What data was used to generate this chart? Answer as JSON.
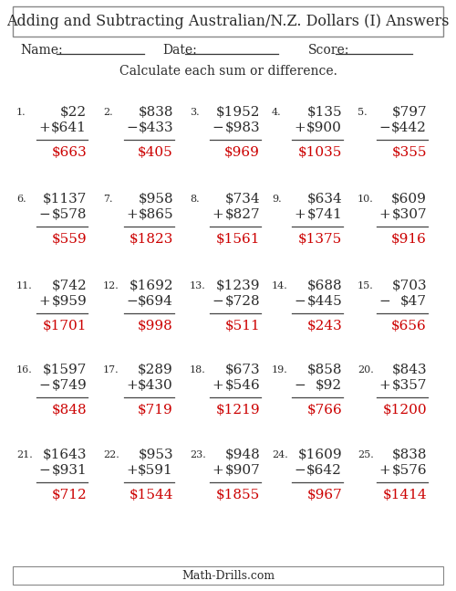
{
  "title": "Adding and Subtracting Australian/N.Z. Dollars (I) Answers",
  "instruction": "Calculate each sum or difference.",
  "footer": "Math-Drills.com",
  "name_label": "Name:",
  "date_label": "Date:",
  "score_label": "Score:",
  "problems": [
    {
      "num": "1.",
      "top": "$22",
      "op": "+",
      "bot": "$641",
      "ans": "$663"
    },
    {
      "num": "2.",
      "top": "$838",
      "op": "−",
      "bot": "$433",
      "ans": "$405"
    },
    {
      "num": "3.",
      "top": "$1952",
      "op": "−",
      "bot": "$983",
      "ans": "$969"
    },
    {
      "num": "4.",
      "top": "$135",
      "op": "+",
      "bot": "$900",
      "ans": "$1035"
    },
    {
      "num": "5.",
      "top": "$797",
      "op": "−",
      "bot": "$442",
      "ans": "$355"
    },
    {
      "num": "6.",
      "top": "$1137",
      "op": "−",
      "bot": "$578",
      "ans": "$559"
    },
    {
      "num": "7.",
      "top": "$958",
      "op": "+",
      "bot": "$865",
      "ans": "$1823"
    },
    {
      "num": "8.",
      "top": "$734",
      "op": "+",
      "bot": "$827",
      "ans": "$1561"
    },
    {
      "num": "9.",
      "top": "$634",
      "op": "+",
      "bot": "$741",
      "ans": "$1375"
    },
    {
      "num": "10.",
      "top": "$609",
      "op": "+",
      "bot": "$307",
      "ans": "$916"
    },
    {
      "num": "11.",
      "top": "$742",
      "op": "+",
      "bot": "$959",
      "ans": "$1701"
    },
    {
      "num": "12.",
      "top": "$1692",
      "op": "−",
      "bot": "$694",
      "ans": "$998"
    },
    {
      "num": "13.",
      "top": "$1239",
      "op": "−",
      "bot": "$728",
      "ans": "$511"
    },
    {
      "num": "14.",
      "top": "$688",
      "op": "−",
      "bot": "$445",
      "ans": "$243"
    },
    {
      "num": "15.",
      "top": "$703",
      "op": "−",
      "bot": "$47",
      "ans": "$656"
    },
    {
      "num": "16.",
      "top": "$1597",
      "op": "−",
      "bot": "$749",
      "ans": "$848"
    },
    {
      "num": "17.",
      "top": "$289",
      "op": "+",
      "bot": "$430",
      "ans": "$719"
    },
    {
      "num": "18.",
      "top": "$673",
      "op": "+",
      "bot": "$546",
      "ans": "$1219"
    },
    {
      "num": "19.",
      "top": "$858",
      "op": "−",
      "bot": "$92",
      "ans": "$766"
    },
    {
      "num": "20.",
      "top": "$843",
      "op": "+",
      "bot": "$357",
      "ans": "$1200"
    },
    {
      "num": "21.",
      "top": "$1643",
      "op": "−",
      "bot": "$931",
      "ans": "$712"
    },
    {
      "num": "22.",
      "top": "$953",
      "op": "+",
      "bot": "$591",
      "ans": "$1544"
    },
    {
      "num": "23.",
      "top": "$948",
      "op": "+",
      "bot": "$907",
      "ans": "$1855"
    },
    {
      "num": "24.",
      "top": "$1609",
      "op": "−",
      "bot": "$642",
      "ans": "$967"
    },
    {
      "num": "25.",
      "top": "$838",
      "op": "+",
      "bot": "$576",
      "ans": "$1414"
    }
  ],
  "bg_color": "#ffffff",
  "text_color": "#2b2b2b",
  "ans_color": "#cc0000",
  "title_fontsize": 11.5,
  "body_fontsize": 11,
  "num_fontsize": 8,
  "label_fontsize": 10,
  "font_family": "serif",
  "col_rights": [
    95,
    190,
    285,
    375,
    468
  ],
  "col_op_x": [
    42,
    138,
    232,
    322,
    415
  ],
  "col_num_x": [
    18,
    113,
    208,
    298,
    392
  ],
  "row_tops": [
    123,
    218,
    313,
    405,
    498
  ],
  "line_span": 30,
  "row_step1": 17,
  "row_step2": 13,
  "row_step3": 14
}
